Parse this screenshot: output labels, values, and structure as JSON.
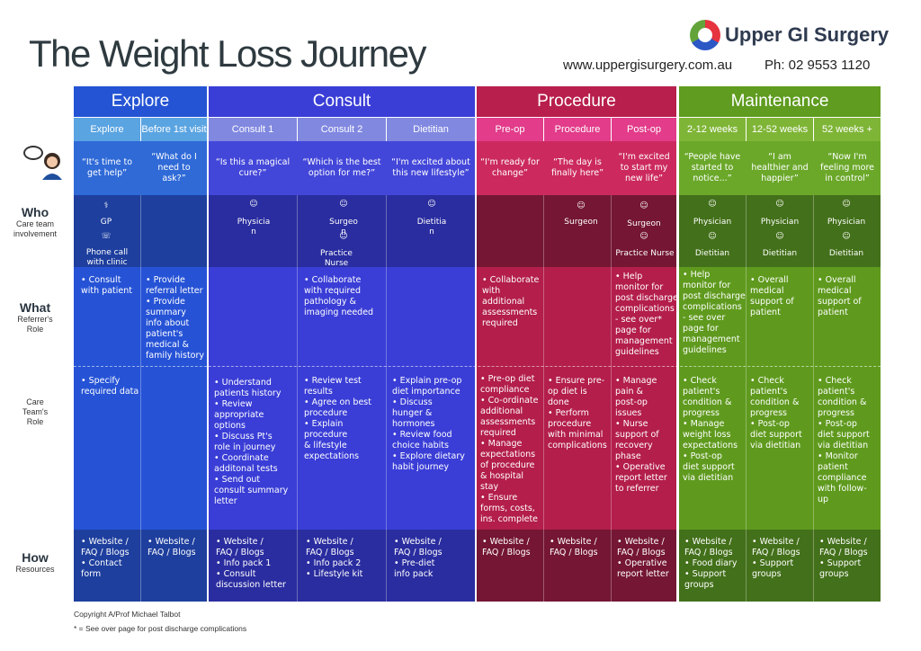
{
  "title": "The Weight Loss Journey",
  "brand": "Upper GI Surgery",
  "website": "www.uppergisurgery.com.au",
  "phone": "Ph: 02  9553 1120",
  "colors": {
    "explore": "#2550d6",
    "consult": "#3a3fd8",
    "procedure": "#b41f4c",
    "maintenance": "#5f9a1e"
  },
  "phases": [
    "Explore",
    "Consult",
    "Procedure",
    "Maintenance"
  ],
  "stages": [
    "Explore",
    "Before 1st visit",
    "Consult 1",
    "Consult 2",
    "Dietitian",
    "Pre-op",
    "Procedure",
    "Post-op",
    "2-12 weeks",
    "12-52 weeks",
    "52 weeks +"
  ],
  "quotes": [
    "“It's time to\nget help”",
    "“What\ndo I need\nto ask?”",
    "“Is this\na magical\ncure?”",
    "“Which is the\nbest option\nfor me?”",
    "“I'm excited\nabout this\nnew lifestyle”",
    "“I'm ready\nfor change”",
    "“The day is\nfinally here”",
    "“I'm excited\nto start my\nnew life”",
    "“People have\nstarted to\nnotice...”",
    "“I am\nhealthier\nand happier”",
    "“Now I'm\nfeeling more\nin control”"
  ],
  "rows": {
    "who": {
      "title": "Who",
      "sub": "Care team\ninvolvement"
    },
    "what": {
      "title": "What",
      "sub": "Referrer's\nRole"
    },
    "care": {
      "sub": "Care\nTeam's\nRole"
    },
    "how": {
      "title": "How",
      "sub": "Resources"
    }
  },
  "who": [
    "GP",
    "Phone call\nwith clinic",
    "Physicia\nn",
    "Surgeo\nn",
    "Practice\nNurse",
    "Dietitia\nn",
    "Surgeon",
    "Surgeon",
    "Practice Nurse",
    "Physician",
    "Dietitian",
    "Physician",
    "Dietitian",
    "Physician",
    "Dietitian"
  ],
  "what": [
    "• Consult\n  with patient",
    "• Provide\n  referral letter\n• Provide\n  summary\n  info about\n  patient's\n  medical &\n  family history",
    "",
    "• Collaborate\n  with required\n  pathology &\n  imaging needed",
    "",
    "• Collaborate\n  with\n  additional\n  assessments\n  required",
    "",
    "• Help\n  monitor for\n  post discharge\n  complications\n  - see over*\n  page for\n  management\n  guidelines",
    "• Help\n  monitor for\n  post discharge\n  complications\n  - see over\n  page for\n  management\n  guidelines",
    "• Overall\n  medical\n  support of\n  patient",
    "• Overall\n  medical\n  support of\n  patient"
  ],
  "care": [
    "• Specify\n  required data",
    "",
    "• Understand\n  patients history\n• Review\n  appropriate\n  options\n• Discuss Pt's\n  role in journey\n• Coordinate\n  additonal tests\n• Send out\n  consult summary\n  letter",
    "• Review test\n  results\n• Agree on best\n  procedure\n• Explain\n  procedure\n  & lifestyle\n  expectations",
    "• Explain pre-op\n  diet importance\n• Discuss\n  hunger &\n  hormones\n• Review food\n  choice habits\n• Explore dietary\n  habit journey",
    "• Pre-op diet\n  compliance\n• Co-ordinate\n  additional\n  assessments\n  required\n• Manage\n  expectations\n  of procedure\n  & hospital\n  stay\n• Ensure\n  forms, costs,\n  ins. complete",
    "• Ensure pre-\n  op diet is\n  done\n• Perform\n  procedure\n  with minimal\n  complications",
    "• Manage\n  pain &\n  post-op\n  issues\n• Nurse\n  support of\n  recovery\n  phase\n• Operative\n  report letter\n  to referrer",
    "• Check\n  patient's\n  condition &\n  progress\n• Manage\n  weight loss\n  expectations\n• Post-op\n  diet support\n  via dietitian",
    "• Check\n  patient's\n  condition &\n  progress\n• Post-op\n  diet support\n  via dietitian",
    "• Check\n  patient's\n  condition &\n  progress\n• Post-op\n  diet support\n  via dietitian\n• Monitor\n  patient\n  compliance\n  with follow-\n  up"
  ],
  "how": [
    "• Website /\n  FAQ / Blogs\n• Contact\n  form",
    "• Website /\n  FAQ / Blogs",
    "• Website /\n  FAQ / Blogs\n• Info pack 1\n• Consult\n  discussion letter",
    "• Website /\n  FAQ / Blogs\n• Info pack 2\n• Lifestyle kit",
    "• Website /\n  FAQ / Blogs\n• Pre-diet\n  info pack",
    "• Website /\n  FAQ / Blogs",
    "• Website /\n  FAQ / Blogs",
    "• Website /\n  FAQ / Blogs\n• Operative\n  report letter",
    "• Website /\n  FAQ / Blogs\n• Food diary\n• Support\n  groups",
    "• Website /\n  FAQ / Blogs\n• Support\n  groups",
    "• Website /\n  FAQ / Blogs\n• Support\n  groups"
  ],
  "footer": {
    "copyright": "Copyright A/Prof Michael Talbot",
    "note": "* = See over page for post discharge complications"
  },
  "icons": [
    "speech-bubble-icon",
    "patient-avatar-icon",
    "stethoscope-icon",
    "phone-icon",
    "doctor-icon"
  ]
}
